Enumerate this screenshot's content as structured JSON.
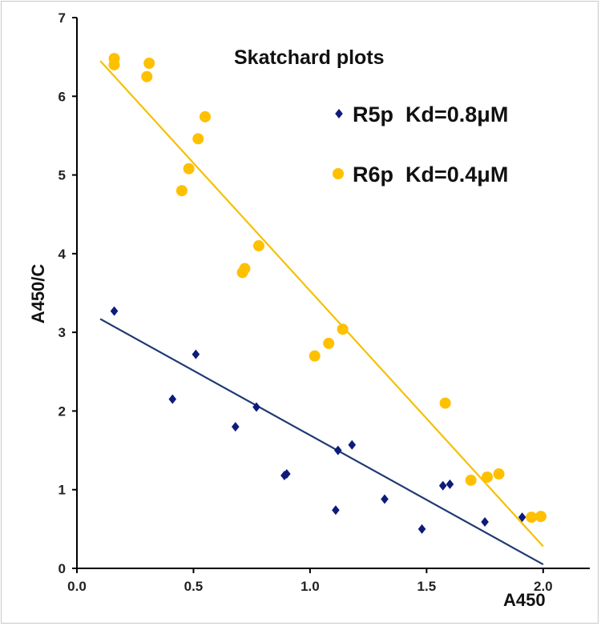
{
  "chart_data": {
    "type": "scatter",
    "title": "Skatchard plots",
    "xlabel": "A450",
    "ylabel": "A450/C",
    "xlim": [
      0,
      2.2
    ],
    "ylim": [
      0,
      7
    ],
    "x_ticks": [
      "0.0",
      "0.5",
      "1.0",
      "1.5",
      "2.0"
    ],
    "y_ticks": [
      "0",
      "1",
      "2",
      "3",
      "4",
      "5",
      "6",
      "7"
    ],
    "grid": false,
    "legend_position": "top-right",
    "series": [
      {
        "name": "R5p  Kd=0.8μM",
        "marker": "diamond",
        "color": "#0d1b7a",
        "line_color": "#1f3a72",
        "x": [
          0.16,
          0.41,
          0.51,
          0.68,
          0.77,
          0.89,
          0.9,
          1.11,
          1.12,
          1.18,
          1.32,
          1.48,
          1.57,
          1.6,
          1.75,
          1.91
        ],
        "y": [
          3.27,
          2.15,
          2.72,
          1.8,
          2.05,
          1.18,
          1.2,
          0.74,
          1.5,
          1.57,
          0.88,
          0.5,
          1.05,
          1.07,
          0.59,
          0.65
        ],
        "fit": {
          "x": [
            0.1,
            2.0
          ],
          "y": [
            3.17,
            0.05
          ]
        }
      },
      {
        "name": "R6p  Kd=0.4μM",
        "marker": "circle",
        "color": "#ffc000",
        "line_color": "#f5c000",
        "x": [
          0.16,
          0.16,
          0.3,
          0.31,
          0.45,
          0.48,
          0.52,
          0.55,
          0.71,
          0.72,
          0.78,
          1.02,
          1.08,
          1.14,
          1.58,
          1.69,
          1.76,
          1.81,
          1.95,
          1.99
        ],
        "y": [
          6.48,
          6.4,
          6.25,
          6.42,
          4.8,
          5.08,
          5.46,
          5.74,
          3.76,
          3.81,
          4.1,
          2.7,
          2.86,
          3.04,
          2.1,
          1.12,
          1.16,
          1.2,
          0.65,
          0.66
        ],
        "fit": {
          "x": [
            0.1,
            2.0
          ],
          "y": [
            6.45,
            0.28
          ]
        }
      }
    ]
  }
}
